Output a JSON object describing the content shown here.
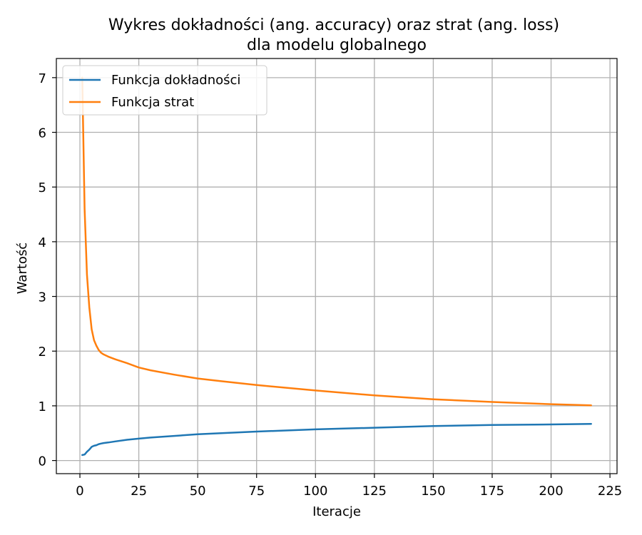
{
  "chart_data": {
    "type": "line",
    "title": "Wykres dokładności (ang. accuracy) oraz strat (ang. loss)",
    "subtitle": "dla modelu globalnego",
    "xlabel": "Iteracje",
    "ylabel": "Wartość",
    "xlim": [
      -10,
      228
    ],
    "ylim": [
      -0.24,
      7.35
    ],
    "xticks": [
      0,
      25,
      50,
      75,
      100,
      125,
      150,
      175,
      200,
      225
    ],
    "yticks": [
      0,
      1,
      2,
      3,
      4,
      5,
      6,
      7
    ],
    "grid": true,
    "legend_position": "top-left",
    "series": [
      {
        "name": "Funkcja dokładności",
        "color": "#1f77b4",
        "x": [
          1,
          2,
          3,
          4,
          5,
          6,
          7,
          8,
          9,
          10,
          12,
          15,
          20,
          25,
          30,
          40,
          50,
          60,
          75,
          100,
          125,
          150,
          175,
          200,
          217
        ],
        "y": [
          0.1,
          0.11,
          0.16,
          0.2,
          0.25,
          0.27,
          0.28,
          0.3,
          0.31,
          0.32,
          0.33,
          0.35,
          0.38,
          0.4,
          0.42,
          0.45,
          0.48,
          0.5,
          0.53,
          0.57,
          0.6,
          0.63,
          0.65,
          0.66,
          0.67
        ]
      },
      {
        "name": "Funkcja strat",
        "color": "#ff7f0e",
        "x": [
          1,
          2,
          3,
          4,
          5,
          6,
          7,
          8,
          9,
          10,
          12,
          15,
          20,
          25,
          30,
          40,
          50,
          60,
          75,
          100,
          125,
          150,
          175,
          200,
          217
        ],
        "y": [
          7.0,
          4.6,
          3.4,
          2.8,
          2.4,
          2.2,
          2.1,
          2.02,
          1.97,
          1.94,
          1.9,
          1.85,
          1.78,
          1.7,
          1.65,
          1.57,
          1.5,
          1.45,
          1.38,
          1.28,
          1.19,
          1.12,
          1.07,
          1.03,
          1.01
        ]
      }
    ]
  },
  "colors": {
    "accuracy": "#1f77b4",
    "loss": "#ff7f0e",
    "grid": "#b0b0b0",
    "axes": "#000000"
  }
}
